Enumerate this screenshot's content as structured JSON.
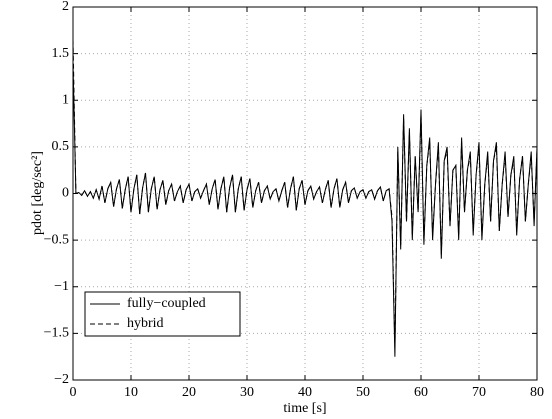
{
  "chart_data": {
    "type": "line",
    "xlabel": "time [s]",
    "ylabel": "pdot [deg/sec²]",
    "xlim": [
      0,
      80
    ],
    "xticks": [
      0,
      10,
      20,
      30,
      40,
      50,
      60,
      70,
      80
    ],
    "ylim": [
      -2,
      2
    ],
    "yticks": [
      {
        "value": -2,
        "label": "−2"
      },
      {
        "value": -1.5,
        "label": "−1.5"
      },
      {
        "value": -1,
        "label": "−1"
      },
      {
        "value": -0.5,
        "label": "−0.5"
      },
      0,
      0.5,
      1,
      1.5,
      2
    ],
    "grid": true,
    "legend": "lower left",
    "x": [
      0,
      0.5,
      1,
      1.5,
      2,
      2.5,
      3,
      3.5,
      4,
      4.5,
      5,
      5.5,
      6,
      6.5,
      7,
      7.5,
      8,
      8.5,
      9,
      9.5,
      10,
      10.5,
      11,
      11.5,
      12,
      12.5,
      13,
      13.5,
      14,
      14.5,
      15,
      15.5,
      16,
      16.5,
      17,
      17.5,
      18,
      18.5,
      19,
      19.5,
      20,
      20.5,
      21,
      21.5,
      22,
      22.5,
      23,
      23.5,
      24,
      24.5,
      25,
      25.5,
      26,
      26.5,
      27,
      27.5,
      28,
      28.5,
      29,
      29.5,
      30,
      30.5,
      31,
      31.5,
      32,
      32.5,
      33,
      33.5,
      34,
      34.5,
      35,
      35.5,
      36,
      36.5,
      37,
      37.5,
      38,
      38.5,
      39,
      39.5,
      40,
      40.5,
      41,
      41.5,
      42,
      42.5,
      43,
      43.5,
      44,
      44.5,
      45,
      45.5,
      46,
      46.5,
      47,
      47.5,
      48,
      48.5,
      49,
      49.5,
      50,
      50.5,
      51,
      51.5,
      52,
      52.5,
      53,
      53.5,
      54,
      54.5,
      55,
      55.5,
      56,
      56.5,
      57,
      57.5,
      58,
      58.5,
      59,
      59.5,
      60,
      60.5,
      61,
      61.5,
      62,
      62.5,
      63,
      63.5,
      64,
      64.5,
      65,
      65.5,
      66,
      66.5,
      67,
      67.5,
      68,
      68.5,
      69,
      69.5,
      70,
      70.5,
      71,
      71.5,
      72,
      72.5,
      73,
      73.5,
      74,
      74.5,
      75,
      75.5,
      76,
      76.5,
      77,
      77.5,
      78,
      78.5,
      79,
      79.5,
      80
    ],
    "series": [
      {
        "name": "fully−coupled",
        "color": "#000000",
        "dash": "solid",
        "values": [
          1.4,
          0,
          0.01,
          -0.02,
          0.03,
          -0.03,
          0.02,
          -0.05,
          0.04,
          -0.06,
          0.08,
          -0.1,
          0.05,
          0.12,
          -0.14,
          0.05,
          0.15,
          -0.16,
          0.04,
          0.18,
          -0.2,
          0.05,
          0.2,
          -0.22,
          0.06,
          0.22,
          -0.2,
          0.05,
          0.18,
          -0.17,
          0.04,
          0.14,
          -0.12,
          0.03,
          0.1,
          -0.08,
          0.02,
          0.08,
          -0.1,
          0.04,
          0.1,
          -0.08,
          0.02,
          0.05,
          -0.05,
          0.03,
          0.1,
          -0.12,
          0.05,
          0.15,
          -0.17,
          0.05,
          0.18,
          -0.2,
          0.06,
          0.2,
          -0.2,
          0.05,
          0.18,
          -0.18,
          0.04,
          0.16,
          -0.15,
          0.03,
          0.12,
          -0.1,
          0.03,
          0.08,
          -0.06,
          0.02,
          0.05,
          -0.08,
          0.03,
          0.12,
          -0.15,
          0.05,
          0.18,
          -0.18,
          0.05,
          0.14,
          -0.12,
          0.03,
          0.08,
          -0.06,
          0.02,
          0.07,
          -0.1,
          0.04,
          0.14,
          -0.15,
          0.05,
          0.16,
          -0.15,
          0.04,
          0.12,
          -0.1,
          0.03,
          0.06,
          -0.05,
          0.02,
          0.04,
          -0.05,
          0.02,
          0.04,
          -0.06,
          0.03,
          0.07,
          -0.08,
          0.03,
          0.05,
          -0.3,
          -1.75,
          0.5,
          -0.6,
          0.85,
          -0.3,
          0.7,
          -0.5,
          0.4,
          -0.2,
          0.9,
          -0.55,
          0.3,
          0.6,
          -0.5,
          0.1,
          0.55,
          -0.7,
          0.35,
          0.5,
          -0.35,
          0.25,
          0.3,
          -0.5,
          0.6,
          -0.2,
          0.25,
          0.45,
          -0.45,
          0.2,
          0.55,
          -0.5,
          0.1,
          0.45,
          -0.3,
          0.35,
          0.55,
          -0.4,
          0.1,
          0.45,
          -0.25,
          0.2,
          0.4,
          -0.45,
          0.15,
          0.4,
          -0.3,
          0.1,
          0.45,
          -0.35,
          0.5
        ]
      },
      {
        "name": "hybrid",
        "color": "#000000",
        "dash": "dashed",
        "values": [
          1.65,
          0,
          0.01,
          -0.02,
          0.03,
          -0.03,
          0.02,
          -0.05,
          0.04,
          -0.06,
          0.08,
          -0.1,
          0.05,
          0.12,
          -0.14,
          0.05,
          0.15,
          -0.16,
          0.04,
          0.18,
          -0.2,
          0.05,
          0.2,
          -0.22,
          0.06,
          0.22,
          -0.2,
          0.05,
          0.18,
          -0.17,
          0.04,
          0.14,
          -0.12,
          0.03,
          0.1,
          -0.08,
          0.02,
          0.08,
          -0.1,
          0.04,
          0.1,
          -0.08,
          0.02,
          0.05,
          -0.05,
          0.03,
          0.1,
          -0.12,
          0.05,
          0.15,
          -0.17,
          0.05,
          0.18,
          -0.2,
          0.06,
          0.2,
          -0.2,
          0.05,
          0.18,
          -0.18,
          0.04,
          0.16,
          -0.15,
          0.03,
          0.12,
          -0.1,
          0.03,
          0.08,
          -0.06,
          0.02,
          0.05,
          -0.08,
          0.03,
          0.12,
          -0.15,
          0.05,
          0.18,
          -0.18,
          0.05,
          0.14,
          -0.12,
          0.03,
          0.08,
          -0.06,
          0.02,
          0.07,
          -0.1,
          0.04,
          0.14,
          -0.15,
          0.05,
          0.16,
          -0.15,
          0.04,
          0.12,
          -0.1,
          0.03,
          0.06,
          -0.05,
          0.02,
          0.04,
          -0.05,
          0.02,
          0.04,
          -0.06,
          0.03,
          0.07,
          -0.08,
          0.03,
          0.05,
          -0.25,
          -1.65,
          0.45,
          -0.55,
          0.8,
          -0.3,
          0.65,
          -0.45,
          0.4,
          -0.2,
          0.85,
          -0.5,
          0.3,
          0.55,
          -0.45,
          0.1,
          0.5,
          -0.65,
          0.35,
          0.45,
          -0.35,
          0.25,
          0.3,
          -0.45,
          0.55,
          -0.2,
          0.25,
          0.4,
          -0.4,
          0.2,
          0.5,
          -0.45,
          0.1,
          0.4,
          -0.3,
          0.35,
          0.5,
          -0.4,
          0.1,
          0.4,
          -0.25,
          0.2,
          0.35,
          -0.4,
          0.15,
          0.4,
          -0.3,
          0.1,
          0.4,
          -0.3,
          0.45
        ]
      }
    ]
  }
}
